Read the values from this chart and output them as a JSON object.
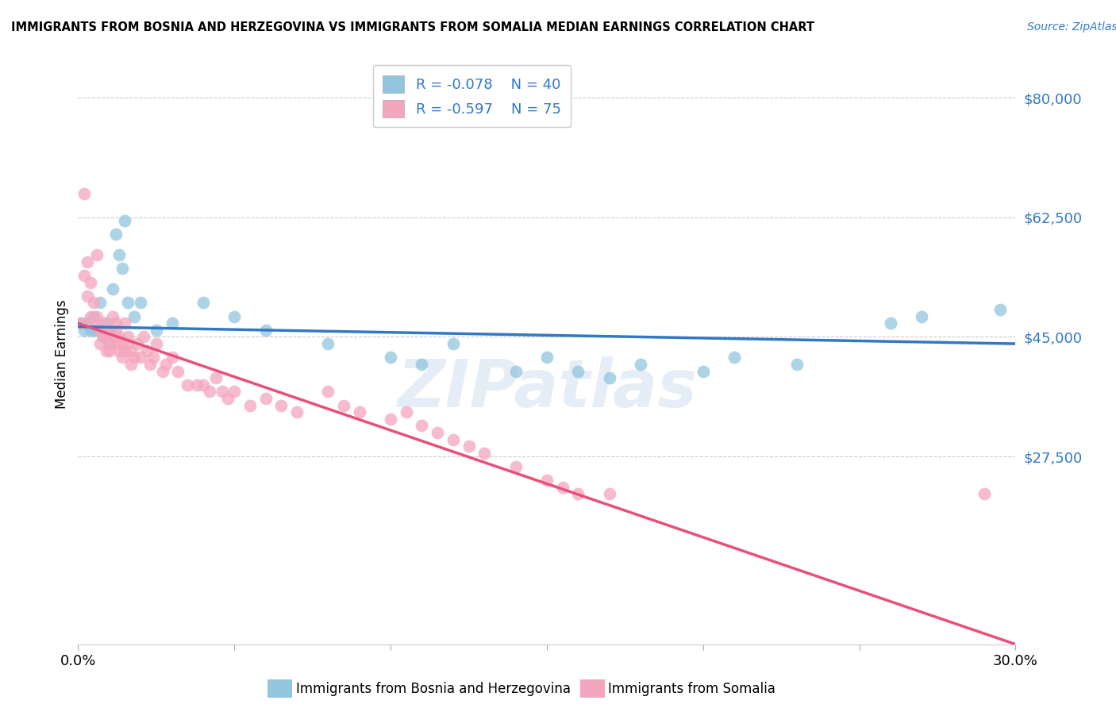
{
  "title": "IMMIGRANTS FROM BOSNIA AND HERZEGOVINA VS IMMIGRANTS FROM SOMALIA MEDIAN EARNINGS CORRELATION CHART",
  "source": "Source: ZipAtlas.com",
  "ylabel": "Median Earnings",
  "xlim": [
    0.0,
    0.3
  ],
  "ylim": [
    0,
    85000
  ],
  "yticks": [
    0,
    27500,
    45000,
    62500,
    80000
  ],
  "ytick_labels": [
    "",
    "$27,500",
    "$45,000",
    "$62,500",
    "$80,000"
  ],
  "xticks": [
    0.0,
    0.05,
    0.1,
    0.15,
    0.2,
    0.25,
    0.3
  ],
  "xtick_labels": [
    "0.0%",
    "",
    "",
    "",
    "",
    "",
    "30.0%"
  ],
  "background_color": "#ffffff",
  "watermark": "ZIPatlas",
  "legend_label1": "Immigrants from Bosnia and Herzegovina",
  "legend_label2": "Immigrants from Somalia",
  "r1": "-0.078",
  "n1": "40",
  "r2": "-0.597",
  "n2": "75",
  "color1": "#92c5de",
  "color2": "#f4a6be",
  "line_color1": "#3178c6",
  "line_color2": "#e8507a",
  "bosnia_x": [
    0.001,
    0.002,
    0.003,
    0.004,
    0.005,
    0.005,
    0.006,
    0.007,
    0.008,
    0.009,
    0.01,
    0.01,
    0.011,
    0.012,
    0.013,
    0.014,
    0.015,
    0.016,
    0.018,
    0.02,
    0.025,
    0.03,
    0.04,
    0.05,
    0.06,
    0.08,
    0.1,
    0.11,
    0.12,
    0.14,
    0.15,
    0.16,
    0.17,
    0.18,
    0.2,
    0.21,
    0.23,
    0.26,
    0.27,
    0.295
  ],
  "bosnia_y": [
    47000,
    46000,
    47000,
    46000,
    48000,
    46000,
    46000,
    50000,
    45000,
    47000,
    46000,
    44000,
    52000,
    60000,
    57000,
    55000,
    62000,
    50000,
    48000,
    50000,
    46000,
    47000,
    50000,
    48000,
    46000,
    44000,
    42000,
    41000,
    44000,
    40000,
    42000,
    40000,
    39000,
    41000,
    40000,
    42000,
    41000,
    47000,
    48000,
    49000
  ],
  "somalia_x": [
    0.001,
    0.002,
    0.002,
    0.003,
    0.003,
    0.004,
    0.004,
    0.005,
    0.005,
    0.006,
    0.006,
    0.007,
    0.007,
    0.008,
    0.008,
    0.009,
    0.009,
    0.01,
    0.01,
    0.01,
    0.011,
    0.011,
    0.012,
    0.012,
    0.012,
    0.013,
    0.013,
    0.014,
    0.014,
    0.015,
    0.015,
    0.016,
    0.016,
    0.017,
    0.017,
    0.018,
    0.019,
    0.02,
    0.021,
    0.022,
    0.023,
    0.024,
    0.025,
    0.027,
    0.028,
    0.03,
    0.032,
    0.035,
    0.038,
    0.04,
    0.042,
    0.044,
    0.046,
    0.048,
    0.05,
    0.055,
    0.06,
    0.065,
    0.07,
    0.08,
    0.085,
    0.09,
    0.1,
    0.105,
    0.11,
    0.115,
    0.12,
    0.125,
    0.13,
    0.14,
    0.15,
    0.155,
    0.16,
    0.17,
    0.29
  ],
  "somalia_y": [
    47000,
    66000,
    54000,
    56000,
    51000,
    53000,
    48000,
    50000,
    47000,
    48000,
    57000,
    44000,
    46000,
    47000,
    45000,
    45000,
    43000,
    44000,
    46000,
    43000,
    48000,
    45000,
    46000,
    44000,
    47000,
    43000,
    45000,
    44000,
    42000,
    43000,
    47000,
    44000,
    45000,
    43000,
    41000,
    42000,
    44000,
    42000,
    45000,
    43000,
    41000,
    42000,
    44000,
    40000,
    41000,
    42000,
    40000,
    38000,
    38000,
    38000,
    37000,
    39000,
    37000,
    36000,
    37000,
    35000,
    36000,
    35000,
    34000,
    37000,
    35000,
    34000,
    33000,
    34000,
    32000,
    31000,
    30000,
    29000,
    28000,
    26000,
    24000,
    23000,
    22000,
    22000,
    22000
  ]
}
